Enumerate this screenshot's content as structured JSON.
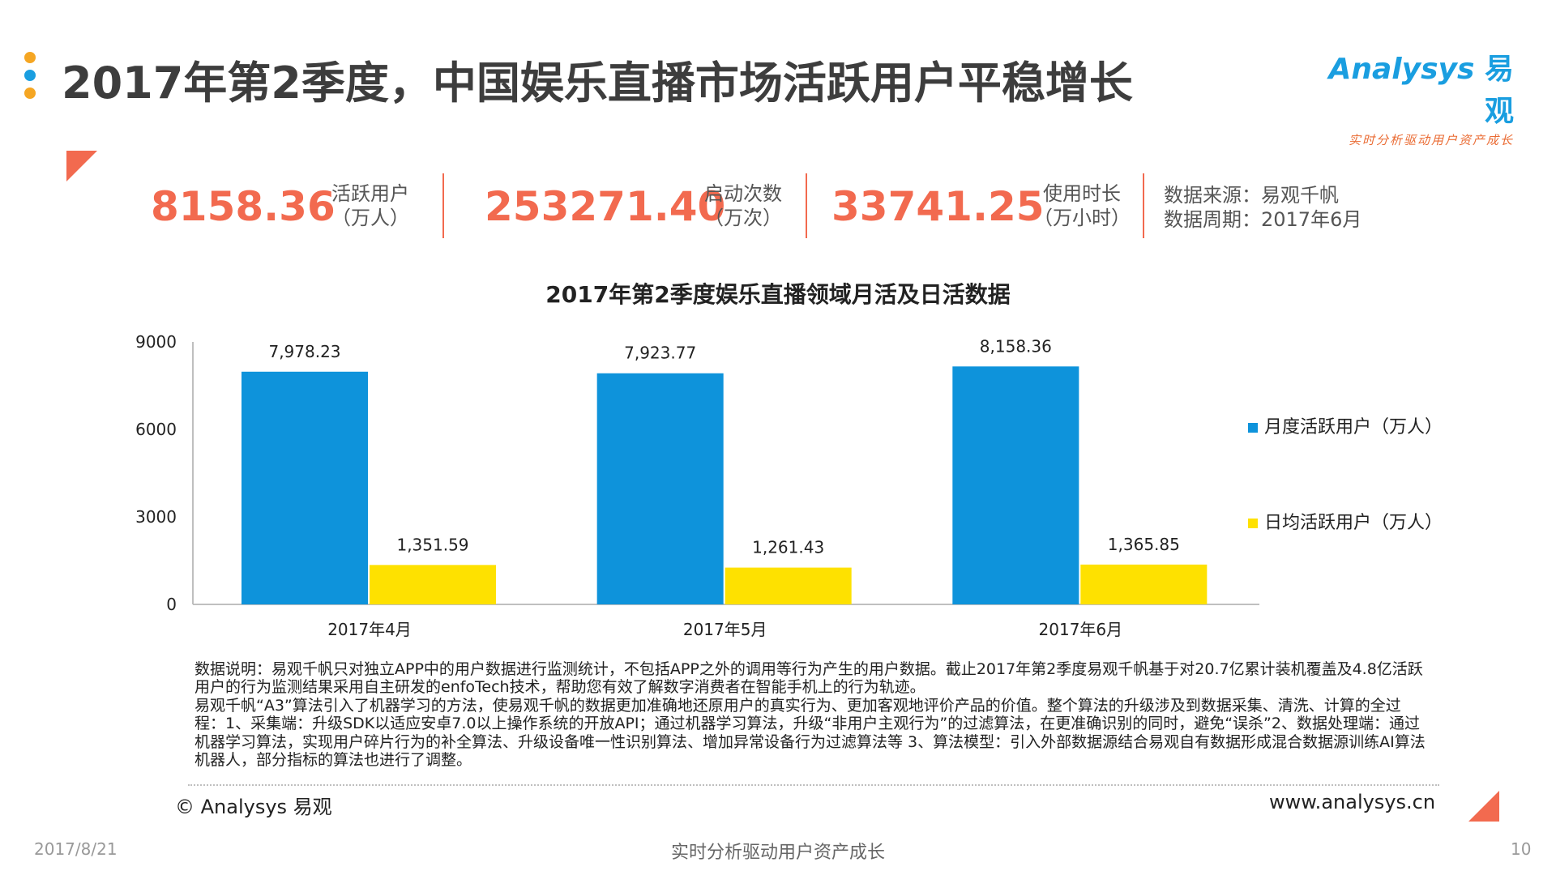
{
  "header": {
    "title": "2017年第2季度，中国娱乐直播市场活跃用户平稳增长",
    "dot_colors": [
      "#f5a623",
      "#1a9ee0",
      "#f5a623"
    ]
  },
  "logo": {
    "name": "Analysys",
    "name_cn": "易观",
    "slogan": "实时分析驱动用户资产成长"
  },
  "kpis": [
    {
      "value": "8158.36",
      "label_line1": "活跃用户",
      "label_line2": "（万人）"
    },
    {
      "value": "253271.40",
      "label_line1": "启动次数",
      "label_line2": "（万次）"
    },
    {
      "value": "33741.25",
      "label_line1": "使用时长",
      "label_line2": "（万小时）"
    }
  ],
  "source": {
    "line1": "数据来源：易观千帆",
    "line2": "数据周期：2017年6月"
  },
  "accent_color": "#f26a4f",
  "chart_data": {
    "type": "bar",
    "title": "2017年第2季度娱乐直播领域月活及日活数据",
    "categories": [
      "2017年4月",
      "2017年5月",
      "2017年6月"
    ],
    "series": [
      {
        "name": "月度活跃用户（万人）",
        "color": "#0e93db",
        "values": [
          7978.23,
          7923.77,
          8158.36
        ],
        "labels": [
          "7,978.23",
          "7,923.77",
          "8,158.36"
        ]
      },
      {
        "name": "日均活跃用户（万人）",
        "color": "#fee100",
        "values": [
          1351.59,
          1261.43,
          1365.85
        ],
        "labels": [
          "1,351.59",
          "1,261.43",
          "1,365.85"
        ]
      }
    ],
    "ylim": [
      0,
      9000
    ],
    "yticks": [
      0,
      3000,
      6000,
      9000
    ],
    "legend_position": "right",
    "grid": false
  },
  "notes": {
    "text": "数据说明：易观千帆只对独立APP中的用户数据进行监测统计，不包括APP之外的调用等行为产生的用户数据。截止2017年第2季度易观千帆基于对20.7亿累计装机覆盖及4.8亿活跃用户的行为监测结果采用自主研发的enfoTech技术，帮助您有效了解数字消费者在智能手机上的行为轨迹。\n易观千帆“A3”算法引入了机器学习的方法，使易观千帆的数据更加准确地还原用户的真实行为、更加客观地评价产品的价值。整个算法的升级涉及到数据采集、清洗、计算的全过程：1、采集端：升级SDK以适应安卓7.0以上操作系统的开放API；通过机器学习算法，升级“非用户主观行为”的过滤算法，在更准确识别的同时，避免“误杀”2、数据处理端：通过机器学习算法，实现用户碎片行为的补全算法、升级设备唯一性识别算法、增加异常设备行为过滤算法等 3、算法模型：引入外部数据源结合易观自有数据形成混合数据源训练AI算法机器人，部分指标的算法也进行了调整。"
  },
  "footer": {
    "copyright": "© Analysys 易观",
    "website": "www.analysys.cn",
    "date": "2017/8/21",
    "slogan": "实时分析驱动用户资产成长",
    "page_number": "10"
  }
}
